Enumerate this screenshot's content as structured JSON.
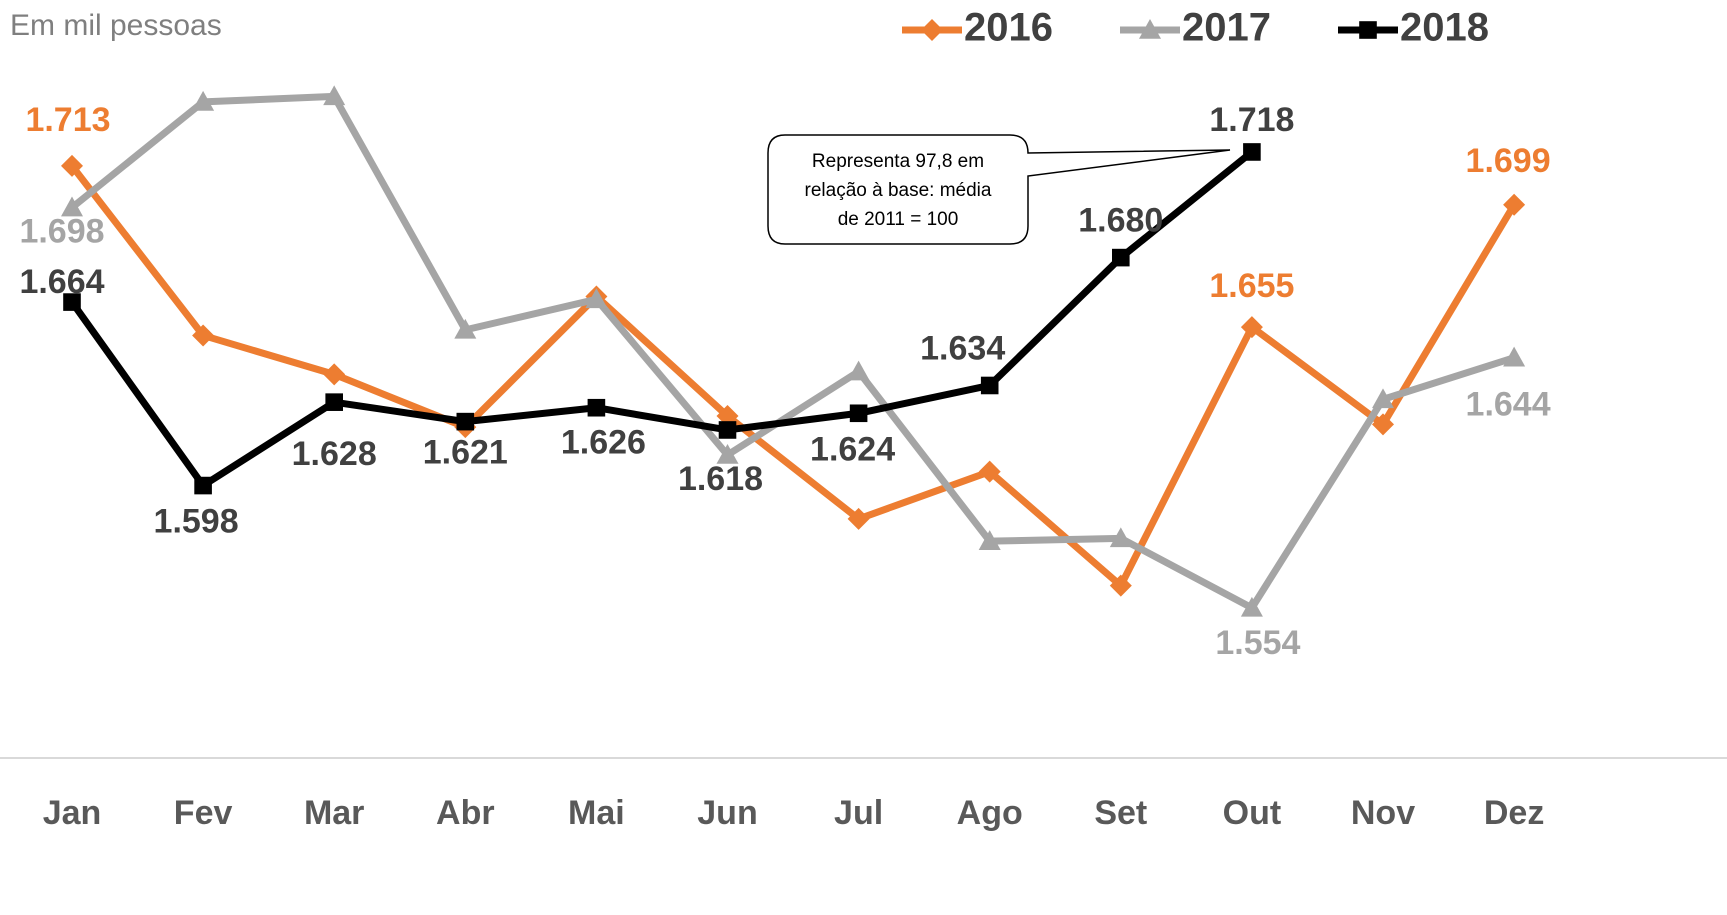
{
  "chart_data": {
    "type": "line",
    "subtitle": "Em mil pessoas",
    "categories": [
      "Jan",
      "Fev",
      "Mar",
      "Abr",
      "Mai",
      "Jun",
      "Jul",
      "Ago",
      "Set",
      "Out",
      "Nov",
      "Dez"
    ],
    "series": [
      {
        "name": "2016",
        "color": "#ED7D31",
        "marker": "diamond",
        "label_color": "#ED7D31",
        "values": [
          1713,
          1652,
          1638,
          1619,
          1666,
          1623,
          1586,
          1603,
          1562,
          1655,
          1620,
          1699
        ],
        "value_labels": [
          "1.713",
          null,
          null,
          null,
          null,
          null,
          null,
          null,
          null,
          "1.655",
          null,
          "1.699"
        ]
      },
      {
        "name": "2017",
        "color": "#A5A5A5",
        "marker": "triangle",
        "label_color": "#A5A5A5",
        "values": [
          1698,
          1736,
          1738,
          1654,
          1665,
          1609,
          1639,
          1578,
          1579,
          1554,
          1629,
          1644
        ],
        "value_labels": [
          "1.698",
          null,
          null,
          null,
          null,
          null,
          null,
          null,
          null,
          "1.554",
          null,
          "1.644"
        ]
      },
      {
        "name": "2018",
        "color": "#000000",
        "marker": "square",
        "label_color": "#404040",
        "values": [
          1664,
          1598,
          1628,
          1621,
          1626,
          1618,
          1624,
          1634,
          1680,
          1718,
          null,
          null
        ],
        "value_labels": [
          "1.664",
          "1.598",
          "1.628",
          "1.621",
          "1.626",
          "1.618",
          "1.624",
          "1.634",
          "1.680",
          "1.718",
          null,
          null
        ]
      }
    ],
    "ylim": [
      1500,
      1750
    ],
    "legend": "top-right",
    "annotation": [
      "Representa 97,8 em",
      "relação à base: média",
      "de 2011 = 100"
    ]
  }
}
